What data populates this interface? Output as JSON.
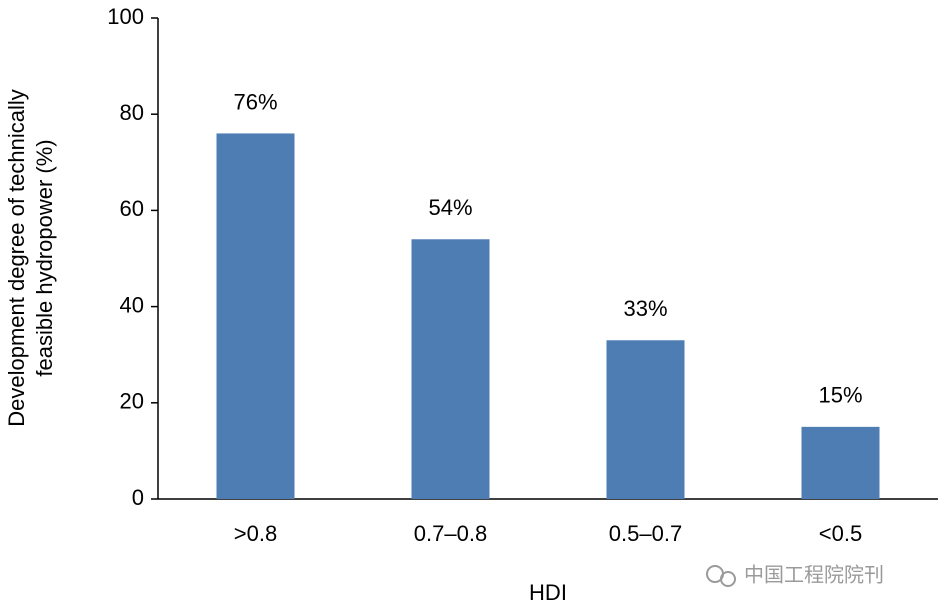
{
  "chart_data": {
    "type": "bar",
    "y_label": [
      "Development degree of technically",
      "feasible hydropower (%)"
    ],
    "x_label": "HDI",
    "categories": [
      ">0.8",
      "0.7–0.8",
      "0.5–0.7",
      "<0.5"
    ],
    "values": [
      76,
      54,
      33,
      15
    ],
    "value_labels": [
      "76%",
      "54%",
      "33%",
      "15%"
    ],
    "color": "#4e7db4",
    "ylim": [
      0,
      100
    ],
    "yticks": [
      0,
      20,
      40,
      60,
      80,
      100
    ],
    "grid": false
  },
  "watermark": "中国工程院院刊"
}
